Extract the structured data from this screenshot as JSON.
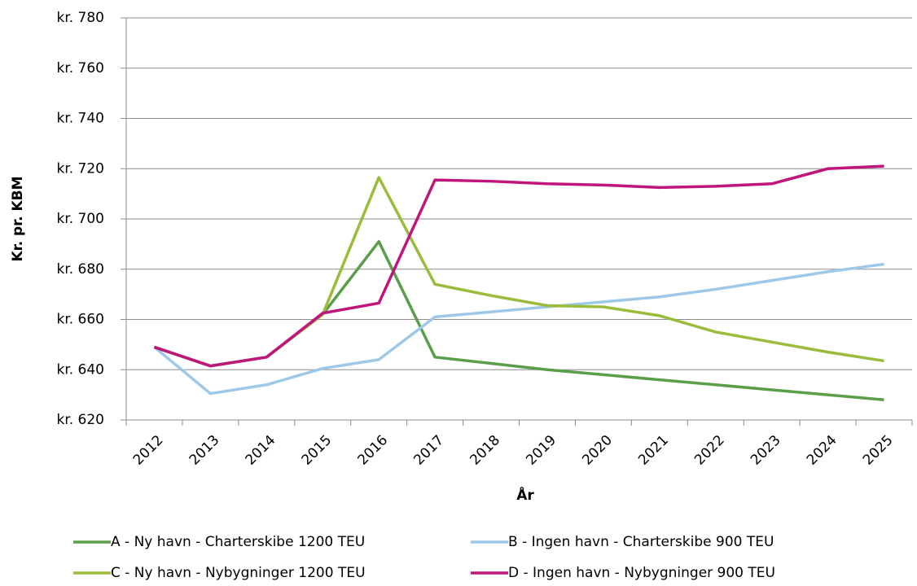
{
  "chart_data": {
    "type": "line",
    "x_label": "År",
    "y_label": "Kr. pr. KBM",
    "categories": [
      "2012",
      "2013",
      "2014",
      "2015",
      "2016",
      "2017",
      "2018",
      "2019",
      "2020",
      "2021",
      "2022",
      "2023",
      "2024",
      "2025"
    ],
    "series": [
      {
        "name": "A - Ny havn - Charterskibe 1200 TEU",
        "color": "#5a9e4a",
        "values": [
          649,
          641.5,
          645,
          662,
          691,
          645,
          642.5,
          640,
          638,
          636,
          634,
          632,
          630,
          628
        ]
      },
      {
        "name": "B - Ingen havn - Charterskibe 900 TEU",
        "color": "#9dc8e8",
        "values": [
          649,
          630.5,
          634,
          640.5,
          644,
          661,
          663,
          665,
          667,
          669,
          672,
          675.5,
          679,
          682
        ]
      },
      {
        "name": "C - Ny havn - Nybygninger 1200 TEU",
        "color": "#9bbb3b",
        "values": [
          649,
          641.5,
          645,
          662,
          716.5,
          674,
          669.5,
          665.5,
          665,
          661.5,
          655,
          651,
          647,
          643.5
        ]
      },
      {
        "name": "D - Ingen havn - Nybygninger 900 TEU",
        "color": "#c0157d",
        "values": [
          649,
          641.5,
          645,
          662.5,
          666.5,
          715.5,
          715,
          714,
          713.5,
          712.5,
          713,
          714,
          720,
          721
        ]
      }
    ],
    "ylim": [
      620,
      780
    ],
    "yticks": [
      {
        "value": 620,
        "label": "kr. 620"
      },
      {
        "value": 640,
        "label": "kr. 640"
      },
      {
        "value": 660,
        "label": "kr. 660"
      },
      {
        "value": 680,
        "label": "kr. 680"
      },
      {
        "value": 700,
        "label": "kr. 700"
      },
      {
        "value": 720,
        "label": "kr. 720"
      },
      {
        "value": 740,
        "label": "kr. 740"
      },
      {
        "value": 760,
        "label": "kr. 760"
      },
      {
        "value": 780,
        "label": "kr. 780"
      }
    ],
    "grid": true
  }
}
